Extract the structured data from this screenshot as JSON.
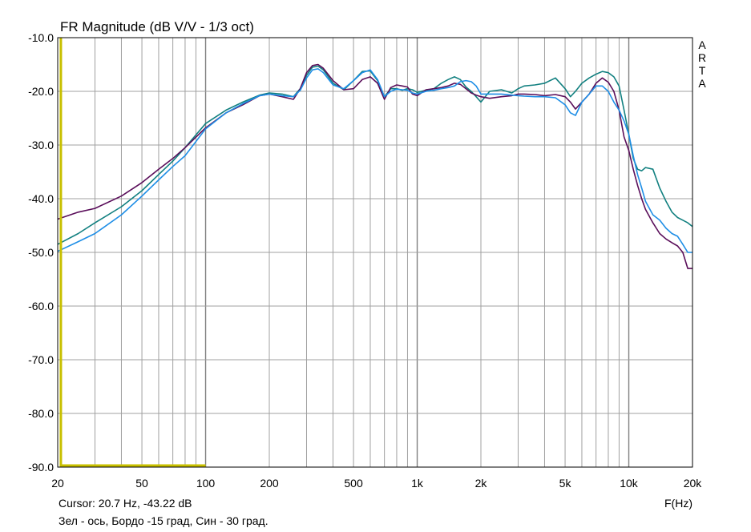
{
  "chart_data": {
    "type": "line",
    "title": "FR Magnitude (dB V/V - 1/3 oct)",
    "xlabel": "F(Hz)",
    "ylabel": "",
    "xscale": "log",
    "xlim": [
      20,
      20000
    ],
    "ylim": [
      -90,
      -10
    ],
    "grid": true,
    "x_ticks": [
      {
        "value": 20,
        "label": "20"
      },
      {
        "value": 50,
        "label": "50"
      },
      {
        "value": 100,
        "label": "100"
      },
      {
        "value": 200,
        "label": "200"
      },
      {
        "value": 500,
        "label": "500"
      },
      {
        "value": 1000,
        "label": "1k"
      },
      {
        "value": 2000,
        "label": "2k"
      },
      {
        "value": 5000,
        "label": "5k"
      },
      {
        "value": 10000,
        "label": "10k"
      },
      {
        "value": 20000,
        "label": "20k"
      }
    ],
    "y_ticks": [
      {
        "value": -10,
        "label": "-10.0"
      },
      {
        "value": -20,
        "label": "-20.0"
      },
      {
        "value": -30,
        "label": "-30.0"
      },
      {
        "value": -40,
        "label": "-40.0"
      },
      {
        "value": -50,
        "label": "-50.0"
      },
      {
        "value": -60,
        "label": "-60.0"
      },
      {
        "value": -70,
        "label": "-70.0"
      },
      {
        "value": -80,
        "label": "-80.0"
      },
      {
        "value": -90,
        "label": "-90.0"
      }
    ],
    "watermark": [
      "A",
      "R",
      "T",
      "A"
    ],
    "cursor_text": "Cursor: 20.7 Hz, -43.22 dB",
    "note": "Зел - ось, Бордо -15 град, Син - 30 град.",
    "cursor_marker": {
      "x": 20.7,
      "x_range": [
        20.7,
        100
      ],
      "y": -90
    },
    "colors": {
      "green": "#128080",
      "bordeaux": "#5a0e5a",
      "blue": "#1e8ee6",
      "cursor": "#c8c000",
      "grid": "#a0a0a0",
      "major_grid": "#808080"
    },
    "series": [
      {
        "color_key": "green",
        "x": [
          20,
          25,
          30,
          40,
          50,
          60,
          70,
          80,
          100,
          125,
          150,
          180,
          200,
          230,
          260,
          280,
          300,
          320,
          340,
          360,
          400,
          450,
          500,
          550,
          600,
          650,
          700,
          750,
          800,
          850,
          900,
          950,
          1000,
          1100,
          1200,
          1300,
          1400,
          1500,
          1600,
          1700,
          1800,
          1900,
          2000,
          2200,
          2500,
          2800,
          3000,
          3200,
          3600,
          4000,
          4500,
          5000,
          5300,
          5600,
          6000,
          6500,
          7000,
          7500,
          8000,
          8500,
          9000,
          9500,
          10000,
          10500,
          11000,
          11500,
          12000,
          13000,
          14000,
          15000,
          16000,
          17000,
          18000,
          19000,
          20000
        ],
        "y": [
          -48.5,
          -46.5,
          -44.5,
          -41.5,
          -38.5,
          -35.5,
          -33.0,
          -30.5,
          -26.0,
          -23.5,
          -22.0,
          -20.7,
          -20.3,
          -20.5,
          -21.0,
          -19.5,
          -17.0,
          -15.5,
          -15.3,
          -16.0,
          -18.5,
          -19.7,
          -18.0,
          -16.3,
          -16.2,
          -18.0,
          -21.0,
          -19.5,
          -19.5,
          -19.8,
          -19.5,
          -19.7,
          -20.2,
          -19.8,
          -19.5,
          -18.5,
          -17.8,
          -17.3,
          -17.8,
          -19.2,
          -20.0,
          -21.0,
          -22.0,
          -20.0,
          -19.7,
          -20.3,
          -19.5,
          -19.0,
          -18.8,
          -18.5,
          -17.5,
          -19.5,
          -21.0,
          -20.0,
          -18.5,
          -17.5,
          -16.8,
          -16.3,
          -16.5,
          -17.3,
          -19.0,
          -23.5,
          -28.0,
          -32.5,
          -34.5,
          -34.8,
          -34.2,
          -34.5,
          -38.0,
          -40.5,
          -42.5,
          -43.5,
          -44.0,
          -44.5,
          -45.2
        ]
      },
      {
        "color_key": "bordeaux",
        "x": [
          20,
          25,
          30,
          40,
          50,
          60,
          70,
          80,
          100,
          125,
          150,
          180,
          200,
          230,
          260,
          280,
          300,
          320,
          340,
          360,
          400,
          450,
          500,
          550,
          600,
          650,
          700,
          750,
          800,
          850,
          900,
          950,
          1000,
          1100,
          1200,
          1300,
          1400,
          1500,
          1600,
          1700,
          1800,
          1900,
          2000,
          2200,
          2500,
          2800,
          3000,
          3200,
          3600,
          4000,
          4500,
          5000,
          5300,
          5600,
          6000,
          6500,
          7000,
          7500,
          8000,
          8500,
          9000,
          9500,
          10000,
          10500,
          11000,
          11500,
          12000,
          13000,
          14000,
          15000,
          16000,
          17000,
          18000,
          19000,
          20000
        ],
        "y": [
          -43.8,
          -42.5,
          -41.8,
          -39.5,
          -37.0,
          -34.5,
          -32.5,
          -30.5,
          -26.8,
          -24.0,
          -22.5,
          -20.8,
          -20.5,
          -21.0,
          -21.5,
          -19.5,
          -16.5,
          -15.2,
          -15.0,
          -15.7,
          -18.0,
          -19.7,
          -19.5,
          -17.8,
          -17.3,
          -18.5,
          -21.5,
          -19.3,
          -18.8,
          -19.0,
          -19.2,
          -20.5,
          -20.8,
          -19.7,
          -19.5,
          -19.3,
          -19.0,
          -18.5,
          -18.7,
          -19.5,
          -20.3,
          -20.7,
          -21.0,
          -21.3,
          -21.0,
          -20.8,
          -20.5,
          -20.5,
          -20.6,
          -20.8,
          -20.6,
          -21.0,
          -22.0,
          -23.3,
          -22.0,
          -20.5,
          -18.5,
          -17.5,
          -18.3,
          -20.0,
          -23.5,
          -28.5,
          -31.0,
          -34.5,
          -37.5,
          -40.0,
          -42.0,
          -44.5,
          -46.5,
          -47.5,
          -48.2,
          -48.8,
          -50.0,
          -53.0,
          -53.0
        ]
      },
      {
        "color_key": "blue",
        "x": [
          20,
          25,
          30,
          40,
          50,
          60,
          70,
          80,
          100,
          125,
          150,
          180,
          200,
          230,
          260,
          280,
          300,
          320,
          340,
          360,
          400,
          450,
          500,
          550,
          600,
          650,
          700,
          750,
          800,
          850,
          900,
          950,
          1000,
          1100,
          1200,
          1300,
          1400,
          1500,
          1600,
          1700,
          1800,
          1900,
          2000,
          2200,
          2500,
          2800,
          3000,
          3200,
          3600,
          4000,
          4500,
          5000,
          5300,
          5600,
          6000,
          6500,
          7000,
          7500,
          8000,
          8500,
          9000,
          9500,
          10000,
          10500,
          11000,
          11500,
          12000,
          13000,
          14000,
          15000,
          16000,
          17000,
          18000,
          19000,
          20000
        ],
        "y": [
          -49.8,
          -48.0,
          -46.5,
          -43.0,
          -39.5,
          -36.5,
          -34.0,
          -32.0,
          -27.0,
          -24.0,
          -22.3,
          -20.8,
          -20.5,
          -20.8,
          -21.0,
          -19.8,
          -17.5,
          -16.0,
          -15.8,
          -16.5,
          -18.8,
          -19.5,
          -18.0,
          -16.5,
          -16.0,
          -17.8,
          -21.0,
          -20.0,
          -19.6,
          -19.7,
          -19.8,
          -20.3,
          -20.5,
          -20.0,
          -19.8,
          -19.5,
          -19.3,
          -19.0,
          -18.2,
          -18.0,
          -18.2,
          -19.0,
          -20.5,
          -20.5,
          -20.5,
          -20.7,
          -20.8,
          -20.9,
          -21.0,
          -21.0,
          -21.2,
          -22.5,
          -24.0,
          -24.5,
          -22.0,
          -20.5,
          -19.0,
          -19.0,
          -20.0,
          -22.0,
          -23.5,
          -25.5,
          -28.0,
          -32.0,
          -35.5,
          -38.0,
          -40.5,
          -43.0,
          -44.0,
          -45.5,
          -46.5,
          -47.0,
          -48.5,
          -50.0,
          -50.0
        ]
      }
    ]
  }
}
